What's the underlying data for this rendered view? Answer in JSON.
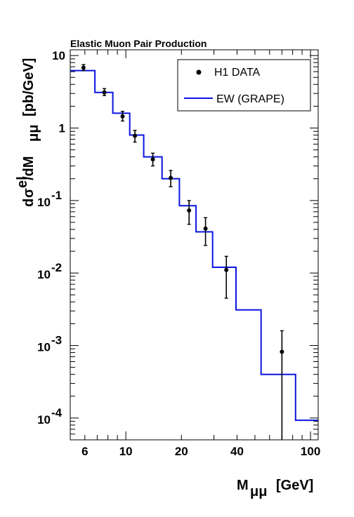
{
  "chart_data": {
    "type": "scatter",
    "title": "Elastic Muon Pair Production",
    "xlabel": {
      "main": "M",
      "sub": "μμ",
      "unit": "[GeV]"
    },
    "ylabel": {
      "d": "d",
      "sigma": "σ",
      "sup": "el",
      "mid": " /dM",
      "sub": "μμ",
      "unit": "[pb/GeV]"
    },
    "xscale": "log",
    "yscale": "log",
    "xlim": [
      5,
      110
    ],
    "ylim": [
      5e-05,
      12
    ],
    "x_ticks": [
      "6",
      "10",
      "20",
      "40",
      "100"
    ],
    "y_ticks": [
      {
        "base": "10",
        "exp": ""
      },
      {
        "base": "1",
        "exp": ""
      },
      {
        "base": "10",
        "exp": "-1"
      },
      {
        "base": "10",
        "exp": "-2"
      },
      {
        "base": "10",
        "exp": "-3"
      },
      {
        "base": "10",
        "exp": "-4"
      }
    ],
    "legend": {
      "position": "top-right",
      "entries": [
        {
          "label": "H1 DATA",
          "kind": "marker"
        },
        {
          "label": "EW (GRAPE)",
          "kind": "line"
        }
      ]
    },
    "series": [
      {
        "name": "H1 DATA",
        "color": "#000000",
        "points": [
          {
            "x": 5.9,
            "y": 6.8,
            "lo": 6.2,
            "hi": 7.5
          },
          {
            "x": 7.65,
            "y": 3.1,
            "lo": 2.8,
            "hi": 3.5
          },
          {
            "x": 9.6,
            "y": 1.45,
            "lo": 1.25,
            "hi": 1.7
          },
          {
            "x": 11.2,
            "y": 0.78,
            "lo": 0.64,
            "hi": 0.93
          },
          {
            "x": 14.0,
            "y": 0.37,
            "lo": 0.3,
            "hi": 0.45
          },
          {
            "x": 17.5,
            "y": 0.205,
            "lo": 0.155,
            "hi": 0.26
          },
          {
            "x": 22.0,
            "y": 0.073,
            "lo": 0.047,
            "hi": 0.1
          },
          {
            "x": 27.0,
            "y": 0.041,
            "lo": 0.024,
            "hi": 0.058
          },
          {
            "x": 35.0,
            "y": 0.011,
            "lo": 0.0045,
            "hi": 0.017
          },
          {
            "x": 70.0,
            "y": 0.00082,
            "lo": 5e-05,
            "hi": 0.0016
          }
        ]
      },
      {
        "name": "EW (GRAPE)",
        "color": "#0a14e0",
        "steps": [
          {
            "x0": 5,
            "x1": 6.8,
            "y": 6.2
          },
          {
            "x0": 6.8,
            "x1": 8.5,
            "y": 3.1
          },
          {
            "x0": 8.5,
            "x1": 10.5,
            "y": 1.6
          },
          {
            "x0": 10.5,
            "x1": 12.5,
            "y": 0.8
          },
          {
            "x0": 12.5,
            "x1": 15.7,
            "y": 0.4
          },
          {
            "x0": 15.7,
            "x1": 19.5,
            "y": 0.2
          },
          {
            "x0": 19.5,
            "x1": 24.0,
            "y": 0.085
          },
          {
            "x0": 24.0,
            "x1": 29.5,
            "y": 0.037
          },
          {
            "x0": 29.5,
            "x1": 39.5,
            "y": 0.012
          },
          {
            "x0": 39.5,
            "x1": 54.0,
            "y": 0.0031
          },
          {
            "x0": 54.0,
            "x1": 83.0,
            "y": 0.0004
          },
          {
            "x0": 83.0,
            "x1": 110,
            "y": 9.3e-05
          }
        ]
      }
    ]
  }
}
